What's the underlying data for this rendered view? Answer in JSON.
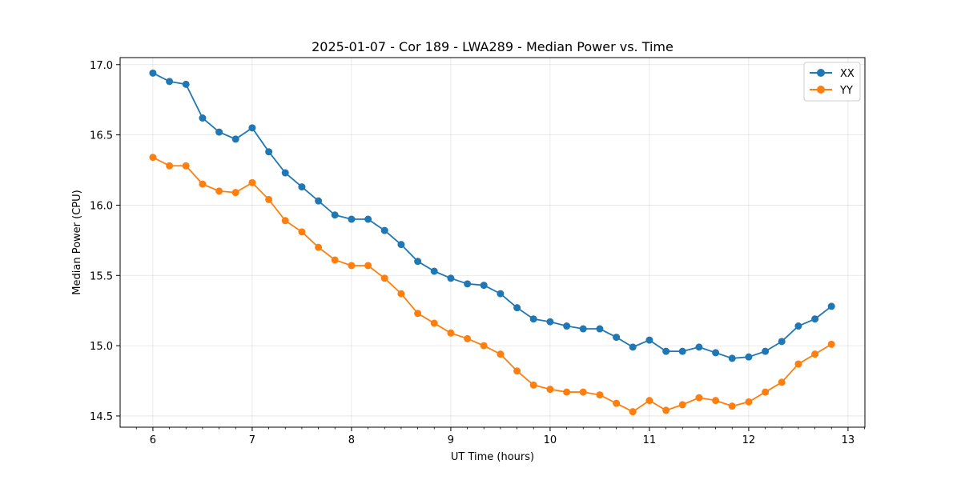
{
  "chart_data": {
    "type": "line",
    "title": "2025-01-07 - Cor 189 - LWA289 - Median Power vs. Time",
    "xlabel": "UT Time (hours)",
    "ylabel": "Median Power (CPU)",
    "xlim": [
      5.67,
      13.17
    ],
    "ylim": [
      14.42,
      17.05
    ],
    "xticks": [
      6,
      7,
      8,
      9,
      10,
      11,
      12,
      13
    ],
    "yticks": [
      14.5,
      15.0,
      15.5,
      16.0,
      16.5,
      17.0
    ],
    "ytick_labels": [
      "14.5",
      "15.0",
      "15.5",
      "16.0",
      "16.5",
      "17.0"
    ],
    "grid": true,
    "legend_position": "top-right",
    "x": [
      6.0,
      6.167,
      6.333,
      6.5,
      6.667,
      6.833,
      7.0,
      7.167,
      7.333,
      7.5,
      7.667,
      7.833,
      8.0,
      8.167,
      8.333,
      8.5,
      8.667,
      8.833,
      9.0,
      9.167,
      9.333,
      9.5,
      9.667,
      9.833,
      10.0,
      10.167,
      10.333,
      10.5,
      10.667,
      10.833,
      11.0,
      11.167,
      11.333,
      11.5,
      11.667,
      11.833,
      12.0,
      12.167,
      12.333,
      12.5,
      12.667,
      12.833
    ],
    "series": [
      {
        "name": "XX",
        "color": "#1f77b4",
        "values": [
          16.94,
          16.88,
          16.86,
          16.62,
          16.52,
          16.47,
          16.55,
          16.38,
          16.23,
          16.13,
          16.03,
          15.93,
          15.9,
          15.9,
          15.82,
          15.72,
          15.6,
          15.53,
          15.48,
          15.44,
          15.43,
          15.37,
          15.27,
          15.19,
          15.17,
          15.14,
          15.12,
          15.12,
          15.06,
          14.99,
          15.04,
          14.96,
          14.96,
          14.99,
          14.95,
          14.91,
          14.92,
          14.96,
          15.03,
          15.14,
          15.19,
          15.28
        ]
      },
      {
        "name": "YY",
        "color": "#ff7f0e",
        "values": [
          16.34,
          16.28,
          16.28,
          16.15,
          16.1,
          16.09,
          16.16,
          16.04,
          15.89,
          15.81,
          15.7,
          15.61,
          15.57,
          15.57,
          15.48,
          15.37,
          15.23,
          15.16,
          15.09,
          15.05,
          15.0,
          14.94,
          14.82,
          14.72,
          14.69,
          14.67,
          14.67,
          14.65,
          14.59,
          14.53,
          14.61,
          14.54,
          14.58,
          14.63,
          14.61,
          14.57,
          14.6,
          14.67,
          14.74,
          14.87,
          14.94,
          15.01
        ]
      }
    ]
  }
}
